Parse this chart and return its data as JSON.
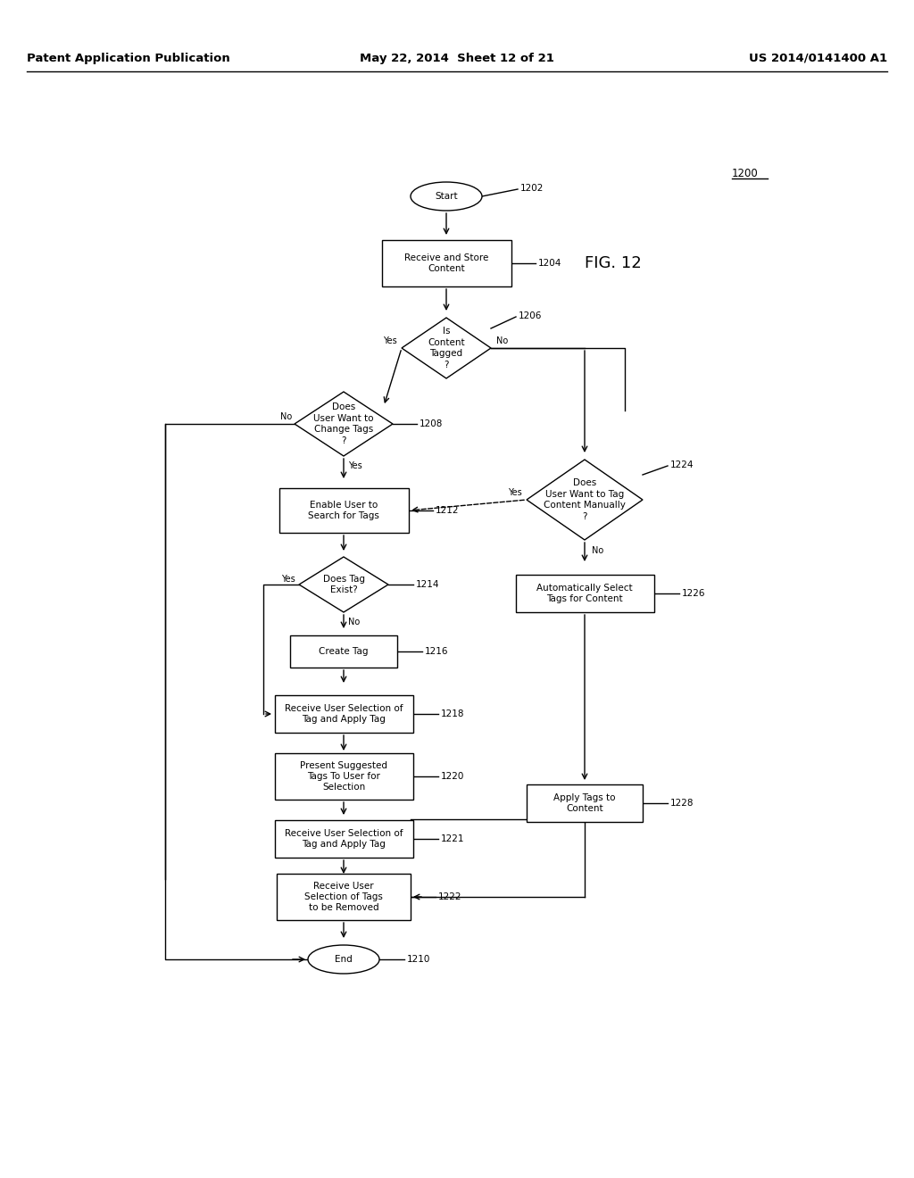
{
  "title_left": "Patent Application Publication",
  "title_mid": "May 22, 2014  Sheet 12 of 21",
  "title_right": "US 2014/0141400 A1",
  "bg_color": "#ffffff",
  "box_color": "#000000",
  "text_color": "#000000",
  "font_size": 7.5,
  "ref_font_size": 7.5,
  "header_font_size": 9.5,
  "fig12_font_size": 13
}
